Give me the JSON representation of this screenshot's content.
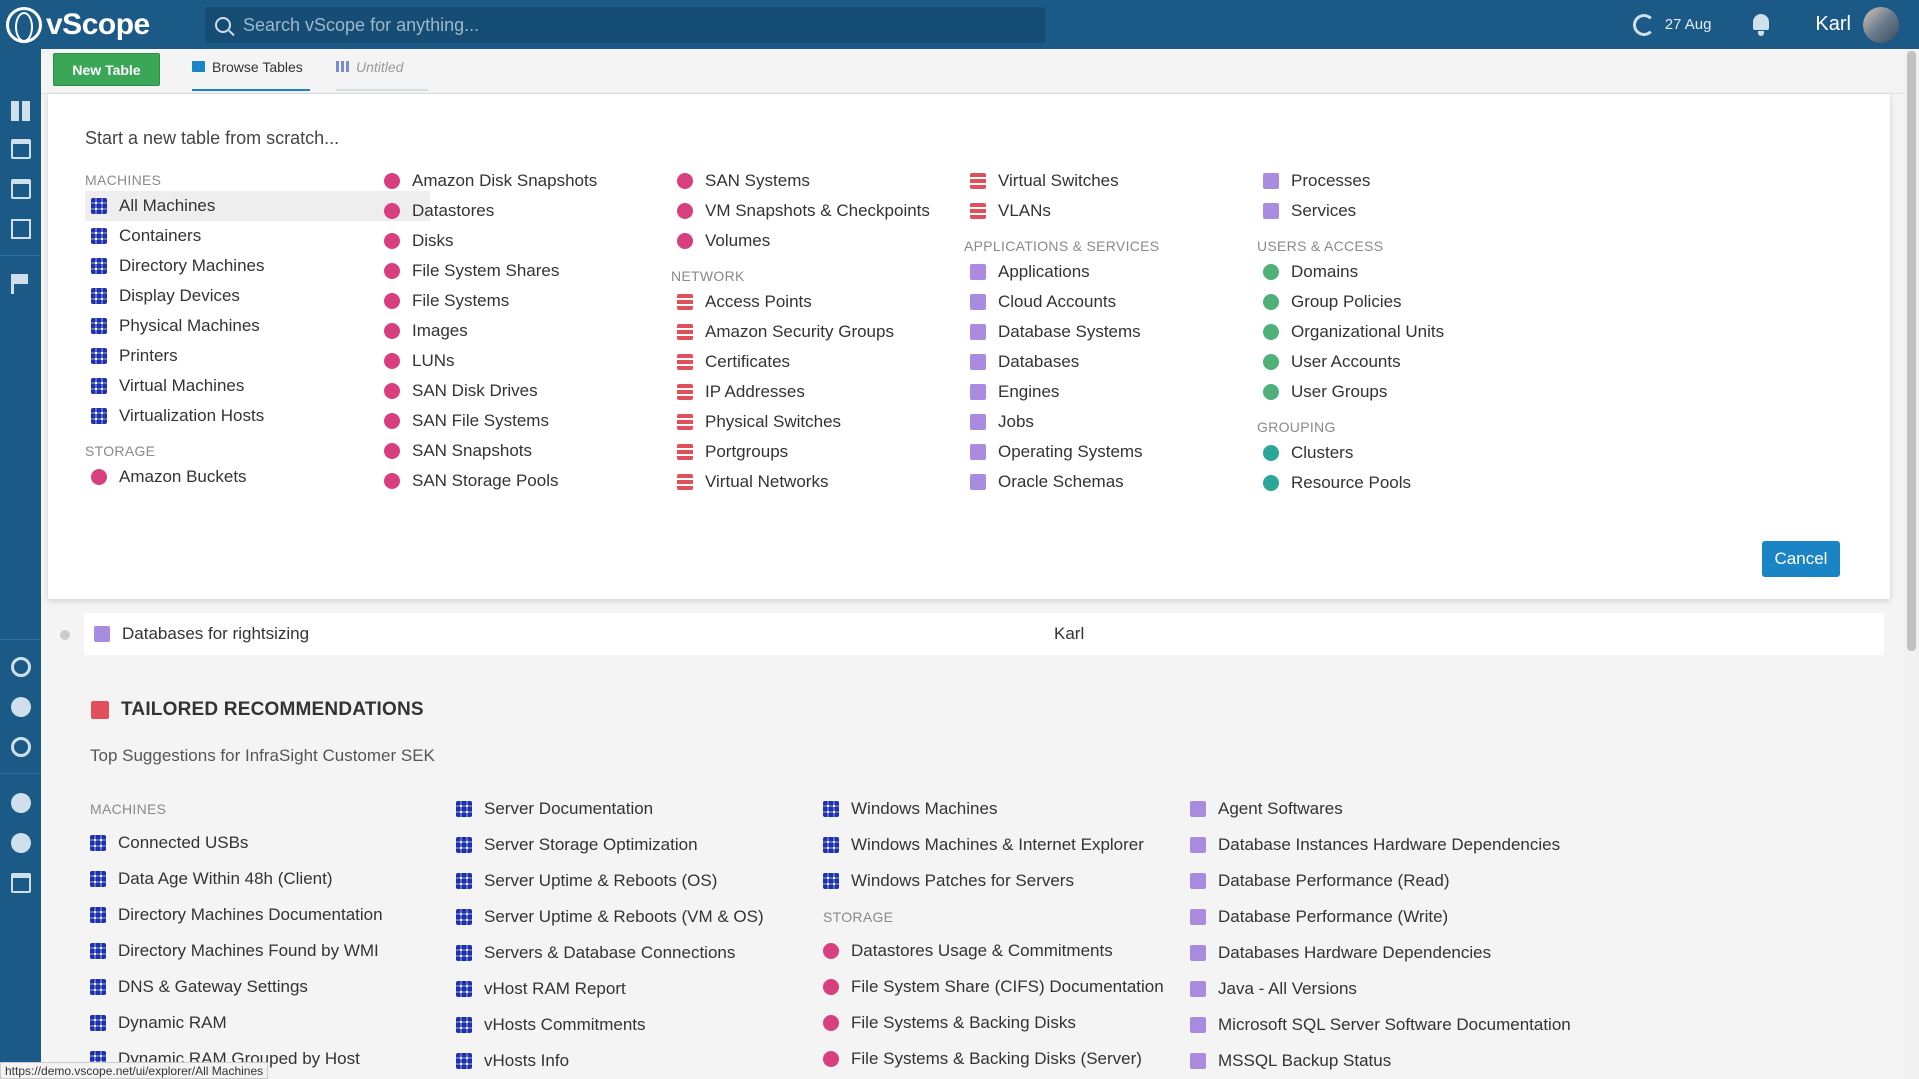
{
  "app": {
    "name": "vScope"
  },
  "search": {
    "placeholder": "Search vScope for anything..."
  },
  "topbar": {
    "date": "27 Aug",
    "username": "Karl"
  },
  "tabs": {
    "new_table": "New Table",
    "browse": "Browse Tables",
    "untitled": "Untitled"
  },
  "panel": {
    "title": "Start a new table from scratch...",
    "cancel": "Cancel",
    "columns": [
      [
        {
          "type": "header",
          "label": "MACHINES"
        },
        {
          "label": "All Machines",
          "icon": "machines-icon",
          "color": "blue",
          "selected": true
        },
        {
          "label": "Containers",
          "icon": "containers-icon",
          "color": "blue"
        },
        {
          "label": "Directory Machines",
          "icon": "directory-machines-icon",
          "color": "blue"
        },
        {
          "label": "Display Devices",
          "icon": "display-icon",
          "color": "blue"
        },
        {
          "label": "Physical Machines",
          "icon": "physical-machines-icon",
          "color": "blue"
        },
        {
          "label": "Printers",
          "icon": "printer-icon",
          "color": "blue"
        },
        {
          "label": "Virtual Machines",
          "icon": "virtual-machines-icon",
          "color": "blue"
        },
        {
          "label": "Virtualization Hosts",
          "icon": "virtualization-hosts-icon",
          "color": "blue"
        },
        {
          "type": "header",
          "label": "STORAGE"
        },
        {
          "label": "Amazon Buckets",
          "icon": "bucket-icon",
          "color": "pink"
        }
      ],
      [
        {
          "label": "Amazon Disk Snapshots",
          "icon": "disk-snapshot-icon",
          "color": "pink"
        },
        {
          "label": "Datastores",
          "icon": "datastore-icon",
          "color": "pink"
        },
        {
          "label": "Disks",
          "icon": "disk-icon",
          "color": "pink"
        },
        {
          "label": "File System Shares",
          "icon": "folder-share-icon",
          "color": "pink"
        },
        {
          "label": "File Systems",
          "icon": "folder-icon",
          "color": "pink"
        },
        {
          "label": "Images",
          "icon": "image-icon",
          "color": "pink"
        },
        {
          "label": "LUNs",
          "icon": "lun-icon",
          "color": "pink"
        },
        {
          "label": "SAN Disk Drives",
          "icon": "san-disk-icon",
          "color": "pink"
        },
        {
          "label": "SAN File Systems",
          "icon": "san-file-system-icon",
          "color": "pink"
        },
        {
          "label": "SAN Snapshots",
          "icon": "san-snapshot-icon",
          "color": "pink"
        },
        {
          "label": "SAN Storage Pools",
          "icon": "san-pool-icon",
          "color": "pink"
        }
      ],
      [
        {
          "label": "SAN Systems",
          "icon": "san-system-icon",
          "color": "pink"
        },
        {
          "label": "VM Snapshots & Checkpoints",
          "icon": "vm-snapshot-icon",
          "color": "pink"
        },
        {
          "label": "Volumes",
          "icon": "volume-icon",
          "color": "pink"
        },
        {
          "type": "header",
          "label": "NETWORK"
        },
        {
          "label": "Access Points",
          "icon": "access-point-icon",
          "color": "red"
        },
        {
          "label": "Amazon Security Groups",
          "icon": "security-group-icon",
          "color": "red"
        },
        {
          "label": "Certificates",
          "icon": "certificate-icon",
          "color": "red"
        },
        {
          "label": "IP Addresses",
          "icon": "ip-icon",
          "color": "red"
        },
        {
          "label": "Physical Switches",
          "icon": "switch-icon",
          "color": "red"
        },
        {
          "label": "Portgroups",
          "icon": "portgroup-icon",
          "color": "red"
        },
        {
          "label": "Virtual Networks",
          "icon": "virtual-network-icon",
          "color": "red"
        }
      ],
      [
        {
          "label": "Virtual Switches",
          "icon": "virtual-switch-icon",
          "color": "red"
        },
        {
          "label": "VLANs",
          "icon": "vlan-icon",
          "color": "red"
        },
        {
          "type": "header",
          "label": "APPLICATIONS & SERVICES"
        },
        {
          "label": "Applications",
          "icon": "application-icon",
          "color": "purple"
        },
        {
          "label": "Cloud Accounts",
          "icon": "cloud-account-icon",
          "color": "purple"
        },
        {
          "label": "Database Systems",
          "icon": "database-system-icon",
          "color": "purple"
        },
        {
          "label": "Databases",
          "icon": "database-icon",
          "color": "purple"
        },
        {
          "label": "Engines",
          "icon": "engine-icon",
          "color": "purple"
        },
        {
          "label": "Jobs",
          "icon": "job-icon",
          "color": "purple"
        },
        {
          "label": "Operating Systems",
          "icon": "os-icon",
          "color": "purple"
        },
        {
          "label": "Oracle Schemas",
          "icon": "schema-icon",
          "color": "purple"
        }
      ],
      [
        {
          "label": "Processes",
          "icon": "process-icon",
          "color": "purple"
        },
        {
          "label": "Services",
          "icon": "service-icon",
          "color": "purple"
        },
        {
          "type": "header",
          "label": "USERS & ACCESS"
        },
        {
          "label": "Domains",
          "icon": "domain-icon",
          "color": "green"
        },
        {
          "label": "Group Policies",
          "icon": "group-policy-icon",
          "color": "green"
        },
        {
          "label": "Organizational Units",
          "icon": "org-unit-icon",
          "color": "green"
        },
        {
          "label": "User Accounts",
          "icon": "user-icon",
          "color": "green"
        },
        {
          "label": "User Groups",
          "icon": "user-group-icon",
          "color": "green"
        },
        {
          "type": "header",
          "label": "GROUPING"
        },
        {
          "label": "Clusters",
          "icon": "cluster-icon",
          "color": "teal"
        },
        {
          "label": "Resource Pools",
          "icon": "resource-pool-icon",
          "color": "teal"
        }
      ]
    ]
  },
  "table_row": {
    "name": "Databases for rightsizing",
    "owner": "Karl"
  },
  "recommendations": {
    "title": "TAILORED RECOMMENDATIONS",
    "subtitle": "Top Suggestions for InfraSight Customer SEK",
    "columns": [
      [
        {
          "type": "header",
          "label": "MACHINES"
        },
        {
          "label": "Connected USBs",
          "color": "blue"
        },
        {
          "label": "Data Age Within 48h (Client)",
          "color": "blue"
        },
        {
          "label": "Directory Machines Documentation",
          "color": "blue"
        },
        {
          "label": "Directory Machines Found by WMI",
          "color": "blue"
        },
        {
          "label": "DNS & Gateway Settings",
          "color": "blue"
        },
        {
          "label": "Dynamic RAM",
          "color": "blue"
        },
        {
          "label": "Dynamic RAM Grouped by Host",
          "color": "blue"
        }
      ],
      [
        {
          "label": "Server Documentation",
          "color": "blue"
        },
        {
          "label": "Server Storage Optimization",
          "color": "blue"
        },
        {
          "label": "Server Uptime & Reboots (OS)",
          "color": "blue"
        },
        {
          "label": "Server Uptime & Reboots (VM & OS)",
          "color": "blue"
        },
        {
          "label": "Servers & Database Connections",
          "color": "blue"
        },
        {
          "label": "vHost RAM Report",
          "color": "blue"
        },
        {
          "label": "vHosts Commitments",
          "color": "blue"
        },
        {
          "label": "vHosts Info",
          "color": "blue"
        }
      ],
      [
        {
          "label": "Windows Machines",
          "color": "blue"
        },
        {
          "label": "Windows Machines & Internet Explorer",
          "color": "blue"
        },
        {
          "label": "Windows Patches for Servers",
          "color": "blue"
        },
        {
          "type": "header",
          "label": "STORAGE"
        },
        {
          "label": "Datastores Usage & Commitments",
          "color": "pink"
        },
        {
          "label": "File System Share (CIFS) Documentation",
          "color": "pink"
        },
        {
          "label": "File Systems & Backing Disks",
          "color": "pink"
        },
        {
          "label": "File Systems & Backing Disks (Server)",
          "color": "pink"
        }
      ],
      [
        {
          "label": "Agent Softwares",
          "color": "purple"
        },
        {
          "label": "Database Instances Hardware Dependencies",
          "color": "purple"
        },
        {
          "label": "Database Performance (Read)",
          "color": "purple"
        },
        {
          "label": "Database Performance (Write)",
          "color": "purple"
        },
        {
          "label": "Databases Hardware Dependencies",
          "color": "purple"
        },
        {
          "label": "Java - All Versions",
          "color": "purple"
        },
        {
          "label": "Microsoft SQL Server Software Documentation",
          "color": "purple"
        },
        {
          "label": "MSSQL Backup Status",
          "color": "purple"
        }
      ]
    ]
  },
  "statusbar": {
    "url": "https://demo.vscope.net/ui/explorer/All Machines"
  },
  "colors": {
    "topbar": "#1b5a86",
    "accent": "#1b84c5",
    "new_button": "#3aa756"
  }
}
